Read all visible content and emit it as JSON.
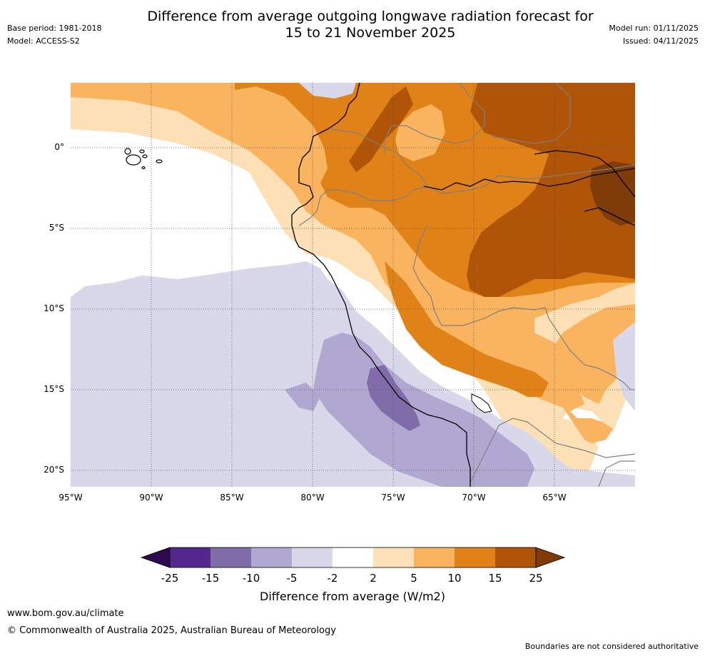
{
  "title_line1": "Difference from average outgoing longwave radiation forecast for",
  "title_line2": "15 to 21 November 2025",
  "base_period": "Base period: 1981-2018",
  "model": "Model: ACCESS-S2",
  "model_run": "Model run: 01/11/2025",
  "issued": "Issued: 04/11/2025",
  "lat_labels": [
    "0°",
    "5°S",
    "10°S",
    "15°S",
    "20°S"
  ],
  "lon_labels": [
    "95°W",
    "90°W",
    "85°W",
    "80°W",
    "75°W",
    "70°W",
    "65°W"
  ],
  "colorbar": {
    "ticks": [
      "-25",
      "-15",
      "-10",
      "-5",
      "-2",
      "2",
      "5",
      "10",
      "15",
      "25"
    ],
    "colors": [
      "#2d0b4e",
      "#54278f",
      "#7f6ca8",
      "#b0a8d0",
      "#d8d8ea",
      "#ffffff",
      "#fde0b5",
      "#fab460",
      "#e08218",
      "#b05408",
      "#7f3b08"
    ],
    "label": "Difference from average (W/m2)"
  },
  "website": "www.bom.gov.au/climate",
  "copyright": "© Commonwealth of Australia 2025, Australian Bureau of Meteorology",
  "disclaimer": "Boundaries are not considered authoritative",
  "map_extent": {
    "lon_min": -95,
    "lon_max": -60,
    "lat_min": -21,
    "lat_max": 4
  }
}
